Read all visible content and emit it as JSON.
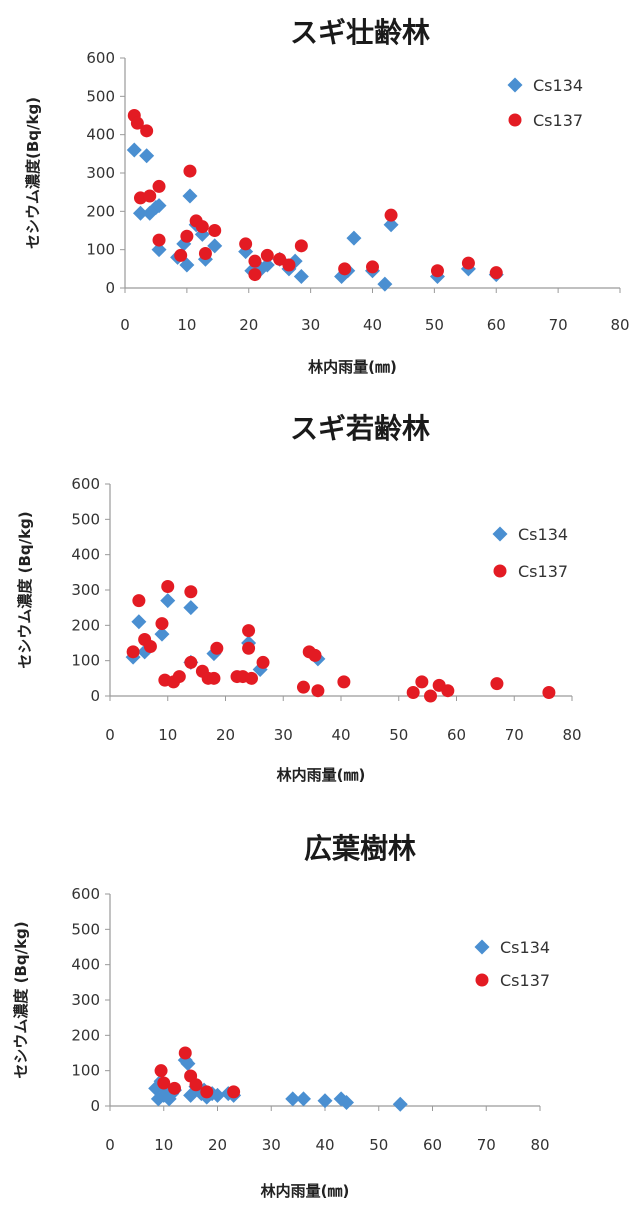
{
  "chart_data": [
    {
      "type": "scatter",
      "title": "スギ壮齢林",
      "xlabel": "林内雨量(㎜)",
      "ylabel": "セシウム濃度(Bq/kg)",
      "xlim": [
        0,
        80
      ],
      "ylim": [
        0,
        600
      ],
      "xticks": [
        "0",
        "10",
        "20",
        "30",
        "40",
        "50",
        "60",
        "70",
        "80"
      ],
      "yticks": [
        "0",
        "100",
        "200",
        "300",
        "400",
        "500",
        "600"
      ],
      "legend_position": "right",
      "series": [
        {
          "name": "Cs134",
          "color": "#4a8fd1",
          "marker": "diamond",
          "points": [
            [
              1.5,
              360
            ],
            [
              2.5,
              195
            ],
            [
              3.5,
              345
            ],
            [
              4,
              195
            ],
            [
              5,
              210
            ],
            [
              5.5,
              215
            ],
            [
              5.5,
              100
            ],
            [
              8.5,
              80
            ],
            [
              9.5,
              115
            ],
            [
              10,
              60
            ],
            [
              10.5,
              240
            ],
            [
              11.5,
              165
            ],
            [
              12.5,
              140
            ],
            [
              13,
              75
            ],
            [
              14.5,
              110
            ],
            [
              19.5,
              95
            ],
            [
              20.5,
              45
            ],
            [
              21,
              40
            ],
            [
              22,
              50
            ],
            [
              23,
              60
            ],
            [
              25,
              75
            ],
            [
              26.5,
              50
            ],
            [
              27.5,
              70
            ],
            [
              28.5,
              30
            ],
            [
              35,
              30
            ],
            [
              36,
              45
            ],
            [
              37,
              130
            ],
            [
              40,
              45
            ],
            [
              42,
              10
            ],
            [
              43,
              165
            ],
            [
              50.5,
              30
            ],
            [
              55.5,
              50
            ],
            [
              60,
              35
            ]
          ]
        },
        {
          "name": "Cs137",
          "color": "#e31b23",
          "marker": "circle",
          "points": [
            [
              1.5,
              450
            ],
            [
              2,
              430
            ],
            [
              3.5,
              410
            ],
            [
              2.5,
              235
            ],
            [
              4,
              240
            ],
            [
              5.5,
              265
            ],
            [
              5.5,
              125
            ],
            [
              9,
              85
            ],
            [
              10,
              135
            ],
            [
              10.5,
              305
            ],
            [
              11.5,
              175
            ],
            [
              12.5,
              160
            ],
            [
              13,
              90
            ],
            [
              14.5,
              150
            ],
            [
              19.5,
              115
            ],
            [
              21,
              35
            ],
            [
              21,
              70
            ],
            [
              23,
              85
            ],
            [
              25,
              75
            ],
            [
              26.5,
              60
            ],
            [
              28.5,
              110
            ],
            [
              35.5,
              50
            ],
            [
              40,
              55
            ],
            [
              43,
              190
            ],
            [
              50.5,
              45
            ],
            [
              55.5,
              65
            ],
            [
              60,
              40
            ]
          ]
        }
      ]
    },
    {
      "type": "scatter",
      "title": "スギ若齢林",
      "xlabel": "林内雨量(㎜)",
      "ylabel": "セシウム濃度 (Bq/kg)",
      "xlim": [
        0,
        80
      ],
      "ylim": [
        0,
        600
      ],
      "xticks": [
        "0",
        "10",
        "20",
        "30",
        "40",
        "50",
        "60",
        "70",
        "80"
      ],
      "yticks": [
        "0",
        "100",
        "200",
        "300",
        "400",
        "500",
        "600"
      ],
      "legend_position": "right",
      "series": [
        {
          "name": "Cs134",
          "color": "#4a8fd1",
          "marker": "diamond",
          "points": [
            [
              4,
              110
            ],
            [
              5,
              210
            ],
            [
              6,
              125
            ],
            [
              9,
              175
            ],
            [
              10,
              270
            ],
            [
              14,
              250
            ],
            [
              14,
              95
            ],
            [
              18,
              120
            ],
            [
              24,
              150
            ],
            [
              26,
              75
            ],
            [
              36,
              105
            ]
          ]
        },
        {
          "name": "Cs137",
          "color": "#e31b23",
          "marker": "circle",
          "points": [
            [
              4,
              125
            ],
            [
              5,
              270
            ],
            [
              6,
              160
            ],
            [
              7,
              140
            ],
            [
              9,
              205
            ],
            [
              9.5,
              45
            ],
            [
              10,
              310
            ],
            [
              11,
              40
            ],
            [
              12,
              55
            ],
            [
              14,
              295
            ],
            [
              14,
              95
            ],
            [
              16,
              70
            ],
            [
              17,
              50
            ],
            [
              18,
              50
            ],
            [
              18.5,
              135
            ],
            [
              22,
              55
            ],
            [
              23,
              55
            ],
            [
              24,
              185
            ],
            [
              24,
              135
            ],
            [
              24.5,
              50
            ],
            [
              26.5,
              95
            ],
            [
              33.5,
              25
            ],
            [
              34.5,
              125
            ],
            [
              35.5,
              115
            ],
            [
              36,
              15
            ],
            [
              40.5,
              40
            ],
            [
              52.5,
              10
            ],
            [
              54,
              40
            ],
            [
              55.5,
              0
            ],
            [
              57,
              30
            ],
            [
              58.5,
              15
            ],
            [
              67,
              35
            ],
            [
              76,
              10
            ]
          ]
        }
      ]
    },
    {
      "type": "scatter",
      "title": "広葉樹林",
      "xlabel": "林内雨量(㎜)",
      "ylabel": "セシウム濃度 (Bq/kg)",
      "xlim": [
        0,
        80
      ],
      "ylim": [
        0,
        600
      ],
      "xticks": [
        "0",
        "10",
        "20",
        "30",
        "40",
        "50",
        "60",
        "70",
        "80"
      ],
      "yticks": [
        "0",
        "100",
        "200",
        "300",
        "400",
        "500",
        "600"
      ],
      "legend_position": "right",
      "series": [
        {
          "name": "Cs134",
          "color": "#4a8fd1",
          "marker": "diamond",
          "points": [
            [
              8.5,
              50
            ],
            [
              9,
              20
            ],
            [
              9.5,
              70
            ],
            [
              10,
              30
            ],
            [
              10.5,
              40
            ],
            [
              11,
              20
            ],
            [
              11.5,
              35
            ],
            [
              12,
              45
            ],
            [
              14,
              130
            ],
            [
              14.5,
              120
            ],
            [
              15,
              30
            ],
            [
              16,
              55
            ],
            [
              17,
              35
            ],
            [
              17.5,
              45
            ],
            [
              18,
              25
            ],
            [
              19,
              35
            ],
            [
              20,
              30
            ],
            [
              22,
              35
            ],
            [
              23,
              30
            ],
            [
              34,
              20
            ],
            [
              36,
              20
            ],
            [
              40,
              15
            ],
            [
              43,
              20
            ],
            [
              44,
              10
            ],
            [
              54,
              5
            ]
          ]
        },
        {
          "name": "Cs137",
          "color": "#e31b23",
          "marker": "circle",
          "points": [
            [
              9.5,
              100
            ],
            [
              10,
              65
            ],
            [
              12,
              50
            ],
            [
              14,
              150
            ],
            [
              15,
              85
            ],
            [
              16,
              60
            ],
            [
              18,
              40
            ],
            [
              23,
              40
            ]
          ]
        }
      ]
    }
  ]
}
